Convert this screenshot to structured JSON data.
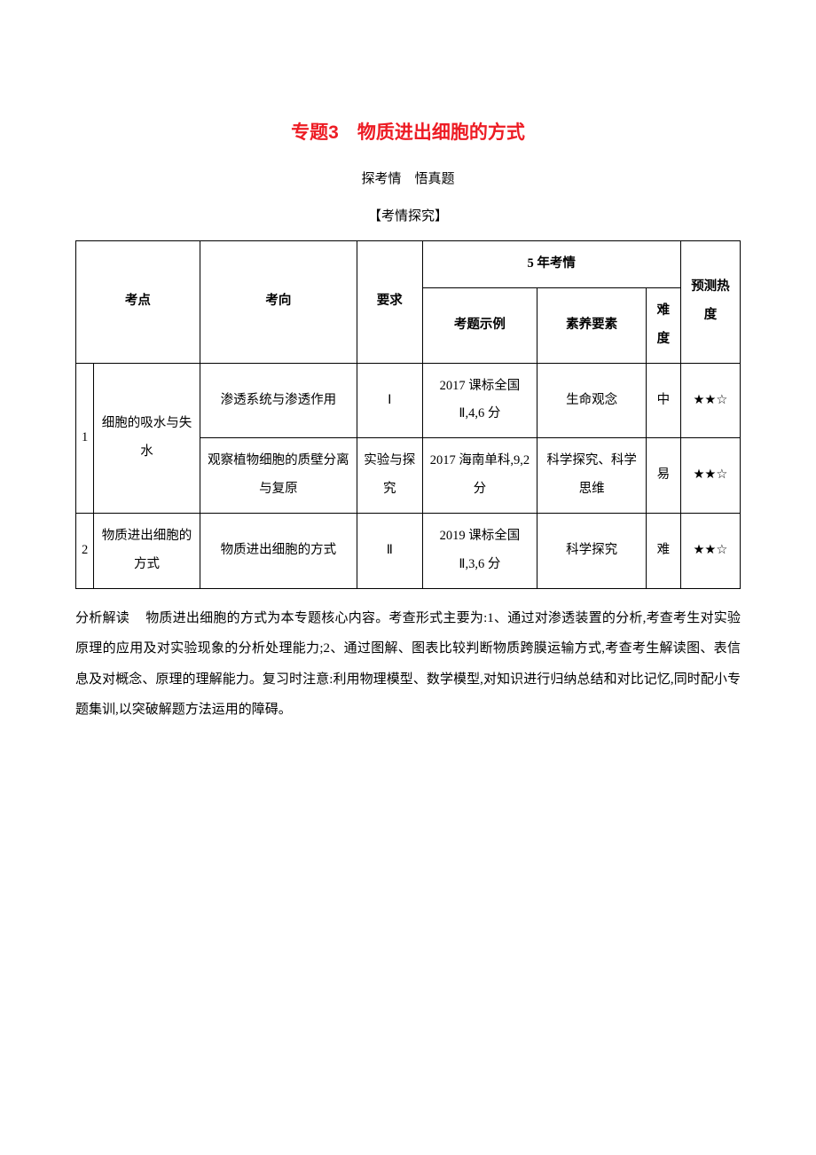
{
  "title": "专题3　物质进出细胞的方式",
  "subtitle": "探考情　悟真题",
  "section_header": "【考情探究】",
  "table": {
    "headers": {
      "kaodian": "考点",
      "kaoxiang": "考向",
      "yaoqiu": "要求",
      "five_year": "5 年考情",
      "kaoti_shili": "考题示例",
      "suyang_yaosu": "素养要素",
      "nandu": "难度",
      "yuce_redu": "预测热度"
    },
    "rows": [
      {
        "num": "1",
        "kaodian": "细胞的吸水与失水",
        "sub": [
          {
            "kaoxiang": "渗透系统与渗透作用",
            "yaoqiu": "Ⅰ",
            "kaoti": "2017 课标全国Ⅱ,4,6 分",
            "suyang": "生命观念",
            "nandu": "中",
            "redu": "★★☆"
          },
          {
            "kaoxiang": "观察植物细胞的质壁分离与复原",
            "yaoqiu": "实验与探究",
            "kaoti": "2017 海南单科,9,2 分",
            "suyang": "科学探究、科学思维",
            "nandu": "易",
            "redu": "★★☆"
          }
        ]
      },
      {
        "num": "2",
        "kaodian": "物质进出细胞的方式",
        "sub": [
          {
            "kaoxiang": "物质进出细胞的方式",
            "yaoqiu": "Ⅱ",
            "kaoti": "2019 课标全国Ⅱ,3,6 分",
            "suyang": "科学探究",
            "nandu": "难",
            "redu": "★★☆"
          }
        ]
      }
    ]
  },
  "analysis": {
    "label": "分析解读",
    "text": "物质进出细胞的方式为本专题核心内容。考查形式主要为:1、通过对渗透装置的分析,考查考生对实验原理的应用及对实验现象的分析处理能力;2、通过图解、图表比较判断物质跨膜运输方式,考查考生解读图、表信息及对概念、原理的理解能力。复习时注意:利用物理模型、数学模型,对知识进行归纳总结和对比记忆,同时配小专题集训,以突破解题方法运用的障碍。"
  }
}
